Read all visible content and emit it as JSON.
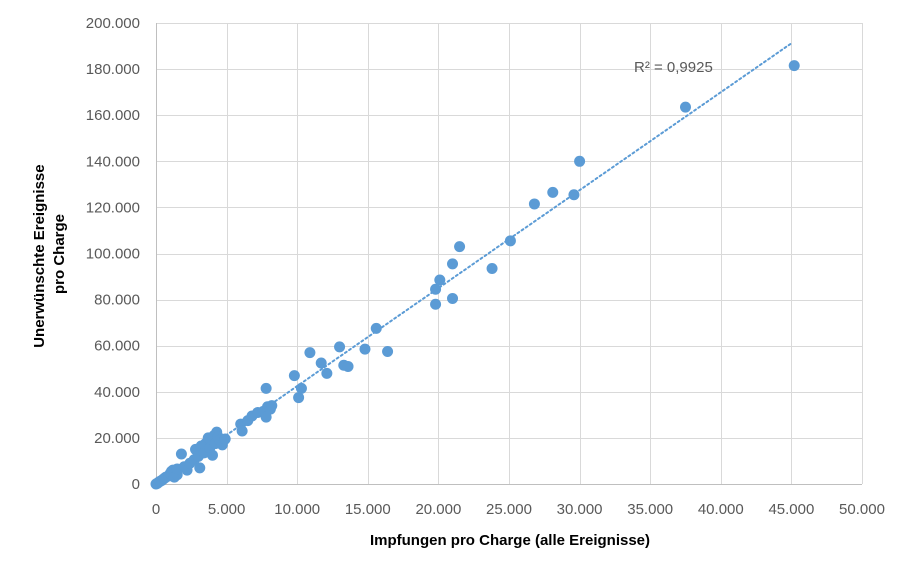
{
  "chart_data": {
    "type": "scatter",
    "title": "",
    "xlabel": "Impfungen pro Charge (alle Ereignisse)",
    "ylabel_lines": [
      "Unerwünschte Ereignisse",
      "pro Charge"
    ],
    "xlim": [
      0,
      50000
    ],
    "ylim": [
      0,
      200000
    ],
    "grid": true,
    "x_tick_labels": [
      "0",
      "5.000",
      "10.000",
      "15.000",
      "20.000",
      "25.000",
      "30.000",
      "35.000",
      "40.000",
      "45.000",
      "50.000"
    ],
    "y_tick_labels": [
      "0",
      "20.000",
      "40.000",
      "60.000",
      "80.000",
      "100.000",
      "120.000",
      "140.000",
      "160.000",
      "180.000",
      "200.000"
    ],
    "annotation": "R² = 0,9925",
    "marker_color": "#5B9BD5",
    "trendline": {
      "style": "dotted",
      "color": "#5B9BD5",
      "x": [
        0,
        45000
      ],
      "y": [
        -900,
        191200
      ]
    },
    "points": [
      [
        0,
        0
      ],
      [
        100,
        300
      ],
      [
        200,
        800
      ],
      [
        300,
        1200
      ],
      [
        400,
        1500
      ],
      [
        500,
        2000
      ],
      [
        600,
        2500
      ],
      [
        700,
        3000
      ],
      [
        900,
        3500
      ],
      [
        1000,
        4500
      ],
      [
        1100,
        5500
      ],
      [
        1200,
        6000
      ],
      [
        1300,
        3000
      ],
      [
        1500,
        4000
      ],
      [
        1500,
        6500
      ],
      [
        1800,
        13000
      ],
      [
        2000,
        7500
      ],
      [
        2200,
        6000
      ],
      [
        2400,
        9000
      ],
      [
        2700,
        10500
      ],
      [
        2800,
        15000
      ],
      [
        3000,
        12000
      ],
      [
        3100,
        7000
      ],
      [
        3200,
        16500
      ],
      [
        3400,
        13500
      ],
      [
        3500,
        17500
      ],
      [
        3700,
        20000
      ],
      [
        3800,
        15500
      ],
      [
        4000,
        12500
      ],
      [
        4000,
        19000
      ],
      [
        4100,
        21000
      ],
      [
        4200,
        17500
      ],
      [
        4300,
        22500
      ],
      [
        4400,
        20500
      ],
      [
        4500,
        19000
      ],
      [
        4700,
        17000
      ],
      [
        4900,
        19500
      ],
      [
        6000,
        26000
      ],
      [
        6100,
        23000
      ],
      [
        6500,
        27500
      ],
      [
        6800,
        29500
      ],
      [
        7200,
        31000
      ],
      [
        7600,
        31500
      ],
      [
        7800,
        29000
      ],
      [
        7900,
        33500
      ],
      [
        7800,
        41500
      ],
      [
        8100,
        32500
      ],
      [
        8200,
        34000
      ],
      [
        9800,
        47000
      ],
      [
        10100,
        37500
      ],
      [
        10300,
        41500
      ],
      [
        10900,
        57000
      ],
      [
        11700,
        52500
      ],
      [
        12100,
        48000
      ],
      [
        13000,
        59500
      ],
      [
        13300,
        51500
      ],
      [
        13600,
        51000
      ],
      [
        14800,
        58500
      ],
      [
        15600,
        67500
      ],
      [
        16400,
        57500
      ],
      [
        19800,
        78000
      ],
      [
        19800,
        84500
      ],
      [
        20100,
        88500
      ],
      [
        21000,
        80500
      ],
      [
        21000,
        95500
      ],
      [
        21500,
        103000
      ],
      [
        23800,
        93500
      ],
      [
        25100,
        105500
      ],
      [
        26800,
        121500
      ],
      [
        28100,
        126500
      ],
      [
        29600,
        125500
      ],
      [
        30000,
        140000
      ],
      [
        37500,
        163500
      ],
      [
        45200,
        181500
      ]
    ]
  }
}
